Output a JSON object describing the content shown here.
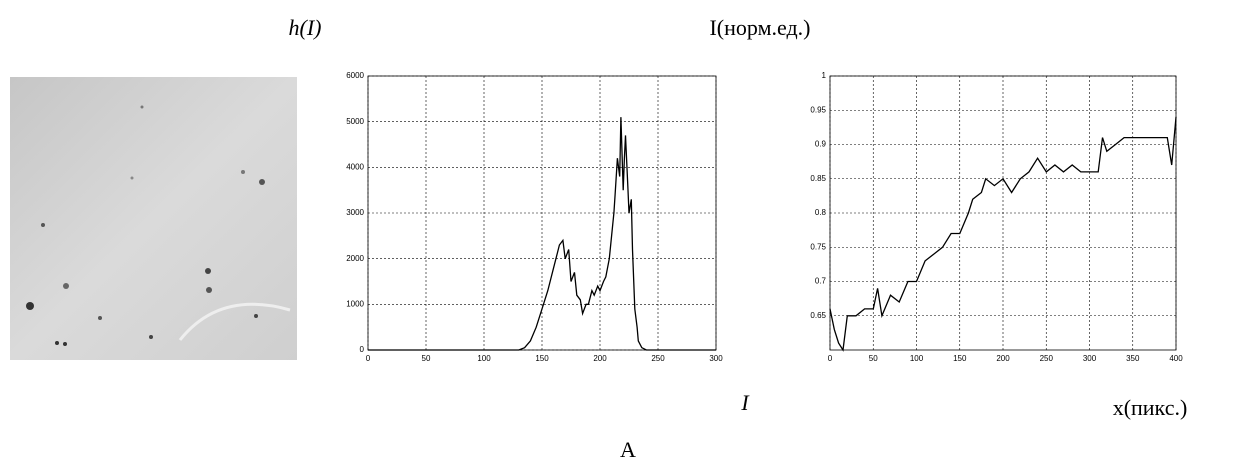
{
  "caption": "A",
  "chart_data": [
    {
      "type": "line",
      "y_label": "h(I)",
      "x_label": "I",
      "color": "#000000",
      "grid": true,
      "xlim": [
        0,
        300
      ],
      "ylim": [
        0,
        6000
      ],
      "xticks": [
        0,
        50,
        100,
        150,
        200,
        250,
        300
      ],
      "yticks": [
        0,
        1000,
        2000,
        3000,
        4000,
        5000,
        6000
      ],
      "x": [
        0,
        50,
        100,
        130,
        135,
        140,
        145,
        150,
        155,
        160,
        163,
        165,
        168,
        170,
        173,
        175,
        178,
        180,
        183,
        185,
        188,
        190,
        193,
        195,
        198,
        200,
        203,
        205,
        208,
        210,
        212,
        213,
        215,
        217,
        218,
        220,
        221,
        222,
        224,
        225,
        227,
        228,
        230,
        232,
        233,
        236,
        240,
        250,
        300
      ],
      "values": [
        0,
        0,
        0,
        0,
        50,
        200,
        500,
        900,
        1300,
        1800,
        2100,
        2300,
        2400,
        2000,
        2200,
        1500,
        1700,
        1200,
        1100,
        800,
        1000,
        1000,
        1300,
        1200,
        1400,
        1300,
        1500,
        1600,
        2000,
        2500,
        3000,
        3400,
        4200,
        3800,
        5100,
        3500,
        4200,
        4700,
        3600,
        3000,
        3300,
        2200,
        900,
        500,
        200,
        50,
        0,
        0,
        0
      ]
    },
    {
      "type": "line",
      "y_label": "I(норм.ед.)",
      "x_label": "x(пикс.)",
      "color": "#000000",
      "grid": true,
      "xlim": [
        0,
        400
      ],
      "ylim": [
        0.6,
        1
      ],
      "xticks": [
        0,
        50,
        100,
        150,
        200,
        250,
        300,
        350,
        400
      ],
      "yticks": [
        0.65,
        0.7,
        0.75,
        0.8,
        0.85,
        0.9,
        0.95,
        1
      ],
      "x": [
        0,
        5,
        10,
        15,
        20,
        30,
        40,
        50,
        55,
        60,
        70,
        80,
        90,
        100,
        110,
        120,
        130,
        140,
        150,
        160,
        165,
        175,
        180,
        190,
        200,
        210,
        220,
        230,
        240,
        250,
        260,
        270,
        280,
        290,
        300,
        310,
        315,
        320,
        330,
        340,
        350,
        360,
        370,
        380,
        390,
        395,
        400
      ],
      "values": [
        0.66,
        0.63,
        0.61,
        0.6,
        0.65,
        0.65,
        0.66,
        0.66,
        0.69,
        0.65,
        0.68,
        0.67,
        0.7,
        0.7,
        0.73,
        0.74,
        0.75,
        0.77,
        0.77,
        0.8,
        0.82,
        0.83,
        0.85,
        0.84,
        0.85,
        0.83,
        0.85,
        0.86,
        0.88,
        0.86,
        0.87,
        0.86,
        0.87,
        0.86,
        0.86,
        0.86,
        0.91,
        0.89,
        0.9,
        0.91,
        0.91,
        0.91,
        0.91,
        0.91,
        0.91,
        0.87,
        0.94
      ]
    }
  ]
}
